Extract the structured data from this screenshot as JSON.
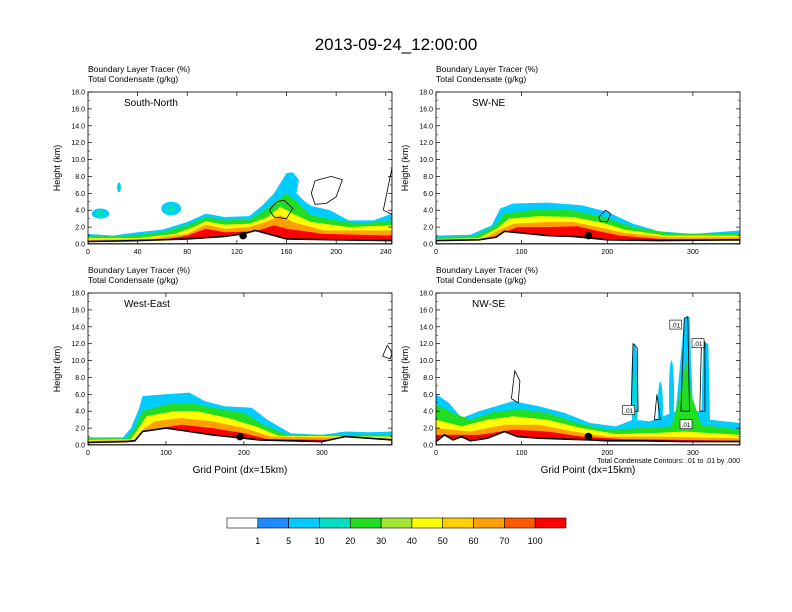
{
  "title": "2013-09-24_12:00:00",
  "colorbar": {
    "labels": [
      "1",
      "5",
      "10",
      "20",
      "30",
      "40",
      "50",
      "60",
      "70",
      "100"
    ],
    "colors": [
      "#ffffff",
      "#1e8cff",
      "#00ccff",
      "#00e0c0",
      "#22dd22",
      "#a0e632",
      "#ffff00",
      "#ffd000",
      "#ffa000",
      "#ff5a00",
      "#ff0000"
    ]
  },
  "chart_data": [
    {
      "type": "heatmap",
      "panel": "South-North",
      "subtitle_1": "Boundary Layer Tracer   (%)",
      "subtitle_2": "Total Condensate   (g/kg)",
      "ylabel": "Height (km)",
      "xlabel": "",
      "ylim": [
        0,
        18
      ],
      "xlim": [
        0,
        245
      ],
      "yticks": [
        "0.0",
        "2.0",
        "4.0",
        "6.0",
        "8.0",
        "10.0",
        "12.0",
        "14.0",
        "16.0",
        "18.0"
      ],
      "xticks": [
        0,
        40,
        80,
        120,
        160,
        200,
        240
      ],
      "marker_x": 125
    },
    {
      "type": "heatmap",
      "panel": "SW-NE",
      "subtitle_1": "Boundary Layer Tracer   (%)",
      "subtitle_2": "Total Condensate   (g/kg)",
      "ylabel": "Height (km)",
      "xlabel": "",
      "ylim": [
        0,
        18
      ],
      "xlim": [
        0,
        355
      ],
      "yticks": [
        "0.0",
        "2.0",
        "4.0",
        "6.0",
        "8.0",
        "10.0",
        "12.0",
        "14.0",
        "16.0",
        "18.0"
      ],
      "xticks": [
        0,
        100,
        200,
        300
      ],
      "marker_x": 178
    },
    {
      "type": "heatmap",
      "panel": "West-East",
      "subtitle_1": "Boundary Layer Tracer   (%)",
      "subtitle_2": "Total Condensate   (g/kg)",
      "ylabel": "Height (km)",
      "xlabel": "Grid Point (dx=15km)",
      "ylim": [
        0,
        18
      ],
      "xlim": [
        0,
        390
      ],
      "yticks": [
        "0.0",
        "2.0",
        "4.0",
        "6.0",
        "8.0",
        "10.0",
        "12.0",
        "14.0",
        "16.0",
        "18.0"
      ],
      "xticks": [
        0,
        100,
        200,
        300
      ],
      "marker_x": 195
    },
    {
      "type": "heatmap",
      "panel": "NW-SE",
      "subtitle_1": "Boundary Layer Tracer   (%)",
      "subtitle_2": "Total Condensate   (g/kg)",
      "ylabel": "Height (km)",
      "xlabel": "Grid Point (dx=15km)",
      "ylim": [
        0,
        18
      ],
      "xlim": [
        0,
        355
      ],
      "yticks": [
        "0.0",
        "2.0",
        "4.0",
        "6.0",
        "8.0",
        "10.0",
        "12.0",
        "14.0",
        "16.0",
        "18.0"
      ],
      "xticks": [
        0,
        100,
        200,
        300
      ],
      "marker_x": 178,
      "contour_note": "Total Condensate Contours: .01 to .01 by .000",
      "contour_labels": [
        ".01",
        ".01",
        ".01",
        ".01"
      ]
    }
  ]
}
